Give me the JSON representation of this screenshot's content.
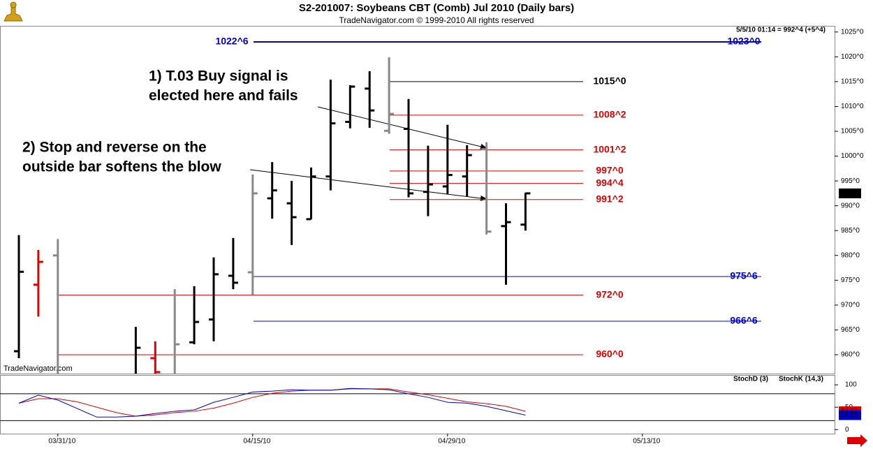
{
  "chart_data": [
    {
      "type": "ohlc",
      "title": "S2-201007:  Soybeans CBT (Comb) Jul 2010  (Daily bars)",
      "subtitle": "TradeNavigator.com © 1999-2010 All rights reserved",
      "info": "5/5/10 01:14 = 992^4 (+5^4)",
      "watermark": "TradeNavigator.com",
      "last_price_label": "992^4",
      "categories": [
        "",
        "",
        "03/31/10",
        "",
        "",
        "",
        "",
        "",
        "",
        "",
        "",
        "",
        "04/15/10",
        "",
        "",
        "",
        "",
        "",
        "",
        "",
        "",
        "",
        "04/29/10",
        "",
        "",
        "",
        "",
        "",
        "",
        "",
        "",
        "",
        "05/13/10",
        "",
        "",
        "",
        ""
      ],
      "open": [
        960.7,
        974.1,
        980,
        null,
        null,
        null,
        955.5,
        959.3,
        955.5,
        962.5,
        967.1,
        975.9,
        976.6,
        991.5,
        990.5,
        987.3,
        995.9,
        1006.9,
        1013.6,
        1005.1,
        1005.5,
        992.8,
        993.9,
        995.9,
        1001.4,
        985.9,
        986.2,
        null,
        null,
        null,
        null,
        null,
        null,
        null,
        null,
        null,
        null
      ],
      "high": [
        984.1,
        981.1,
        983.3,
        null,
        null,
        null,
        965.6,
        962.7,
        973.2,
        973.8,
        979.6,
        983.5,
        996.3,
        998.8,
        995.0,
        997.7,
        1015.4,
        1014.3,
        1017.1,
        1019.9,
        1011.5,
        1002.1,
        1006.3,
        1002.2,
        1002.8,
        990.5,
        992.6,
        null,
        null,
        null,
        null,
        null,
        null,
        null,
        null,
        null,
        null
      ],
      "low": [
        959.3,
        967.7,
        955,
        null,
        null,
        null,
        955,
        955,
        955,
        962.1,
        962.7,
        973.2,
        972.1,
        987.4,
        982.1,
        987.3,
        993.1,
        1005.6,
        1005.7,
        1004.5,
        991.7,
        987.9,
        992.4,
        991.9,
        984.2,
        974.1,
        985.0,
        null,
        null,
        null,
        null,
        null,
        null,
        null,
        null,
        null,
        null
      ],
      "close": [
        976.7,
        978.7,
        955.5,
        null,
        null,
        null,
        961.4,
        956.5,
        962.1,
        966.6,
        976.2,
        974.5,
        992.5,
        993.1,
        987.7,
        995.9,
        1006.6,
        1014.0,
        1009.2,
        1008.5,
        992.5,
        994.3,
        996.2,
        1000.2,
        984.8,
        986.7,
        992.5,
        null,
        null,
        null,
        null,
        null,
        null,
        null,
        null,
        null,
        null
      ],
      "colors": [
        "#000000",
        "#e00000",
        "#888888",
        null,
        null,
        null,
        "#000000",
        "#e00000",
        "#888888",
        "#000000",
        "#000000",
        "#000000",
        "#888888",
        "#000000",
        "#000000",
        "#000000",
        "#000000",
        "#000000",
        "#000000",
        "#888888",
        "#000000",
        "#000000",
        "#000000",
        "#000000",
        "#888888",
        "#000000",
        "#000000",
        null,
        null,
        null,
        null,
        null,
        null,
        null,
        null,
        null,
        null
      ],
      "ylim": [
        956.2,
        1026.1
      ],
      "yticks": [
        {
          "value": 960,
          "label": "960^0"
        },
        {
          "value": 965,
          "label": "965^0"
        },
        {
          "value": 970,
          "label": "970^0"
        },
        {
          "value": 975,
          "label": "975^0"
        },
        {
          "value": 980,
          "label": "980^0"
        },
        {
          "value": 985,
          "label": "985^0"
        },
        {
          "value": 990,
          "label": "990^0"
        },
        {
          "value": 995,
          "label": "995^0"
        },
        {
          "value": 1000,
          "label": "1000^0"
        },
        {
          "value": 1005,
          "label": "1005^0"
        },
        {
          "value": 1010,
          "label": "1010^0"
        },
        {
          "value": 1015,
          "label": "1015^0"
        },
        {
          "value": 1020,
          "label": "1020^0"
        },
        {
          "value": 1025,
          "label": "1025^0"
        }
      ],
      "levels": [
        {
          "value": 1023,
          "label": "1023^0",
          "left_label": "1022^6",
          "color": "#0000cc"
        },
        {
          "value": 1015,
          "label": "1015^0",
          "color": "#000000"
        },
        {
          "value": 1008.25,
          "label": "1008^2",
          "color": "#e00000"
        },
        {
          "value": 1001.25,
          "label": "1001^2",
          "color": "#e00000"
        },
        {
          "value": 997,
          "label": "997^0",
          "color": "#e00000"
        },
        {
          "value": 994.5,
          "label": "994^4",
          "color": "#e00000"
        },
        {
          "value": 991.25,
          "label": "991^2",
          "color": "#e00000"
        },
        {
          "value": 975.75,
          "label": "975^6",
          "color": "#0000cc"
        },
        {
          "value": 972,
          "label": "972^0",
          "color": "#e00000"
        },
        {
          "value": 966.75,
          "label": "966^6",
          "color": "#0000cc"
        },
        {
          "value": 960,
          "label": "960^0",
          "color": "#e00000"
        }
      ],
      "annotations": [
        {
          "lines": [
            "1) T.03 Buy signal is",
            "elected here and fails"
          ]
        },
        {
          "lines": [
            "2) Stop and reverse on the",
            "outside bar softens the blow"
          ]
        }
      ]
    },
    {
      "type": "line",
      "series": [
        {
          "name": "StochD (3)",
          "color": "#e00000",
          "last_label": "40.90",
          "values": [
            59,
            69,
            69,
            62,
            50,
            38,
            30,
            33,
            38,
            41,
            48,
            59,
            72,
            81,
            86,
            88,
            88,
            91,
            91,
            91,
            84,
            78,
            70,
            62,
            58,
            52,
            40.9,
            null,
            null,
            null,
            null,
            null,
            null,
            null,
            null,
            null,
            null
          ]
        },
        {
          "name": "StochK (14,3)",
          "color": "#0000cc",
          "last_label": "32.28",
          "values": [
            59,
            77,
            66,
            47,
            28,
            28,
            30,
            36,
            41,
            44,
            61,
            72,
            84,
            86,
            89,
            88,
            88,
            92,
            91,
            89,
            80,
            72,
            61,
            59,
            52,
            42,
            32.28,
            null,
            null,
            null,
            null,
            null,
            null,
            null,
            null,
            null,
            null
          ]
        }
      ],
      "ylim": [
        -9,
        122
      ],
      "yticks": [
        0,
        50,
        100
      ],
      "hlines": [
        20,
        80
      ]
    }
  ]
}
